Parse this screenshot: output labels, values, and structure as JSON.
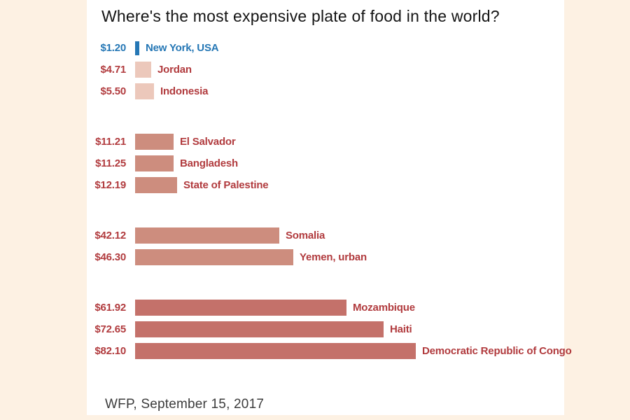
{
  "title": "Where's the most expensive plate of food in the world?",
  "source": "WFP, September 15, 2017",
  "colors": {
    "background": "#fdf1e3",
    "panel": "#ffffff",
    "highlight_blue": "#2577b5",
    "label_red": "#b13b3e",
    "bar_light": "#ecc8bb",
    "bar_medium": "#cd8d7e",
    "bar_dark": "#c4716a",
    "title_text": "#141414",
    "source_text": "#3c3c3c"
  },
  "chart_data": {
    "type": "bar",
    "orientation": "horizontal",
    "title": "Where's the most expensive plate of food in the world?",
    "xlabel": "",
    "ylabel": "",
    "value_prefix": "$",
    "xlim": [
      0,
      82.1
    ],
    "grid": false,
    "legend": false,
    "categories": [
      "New York, USA",
      "Jordan",
      "Indonesia",
      "El Salvador",
      "Bangladesh",
      "State of Palestine",
      "Somalia",
      "Yemen, urban",
      "Mozambique",
      "Haiti",
      "Democratic Republic of Congo"
    ],
    "values": [
      1.2,
      4.71,
      5.5,
      11.21,
      11.25,
      12.19,
      42.12,
      46.3,
      61.92,
      72.65,
      82.1
    ],
    "rows": [
      {
        "value_label": "$1.20",
        "value": 1.2,
        "label": "New York, USA",
        "tier": "highlight",
        "group": 0
      },
      {
        "value_label": "$4.71",
        "value": 4.71,
        "label": "Jordan",
        "tier": "light",
        "group": 0
      },
      {
        "value_label": "$5.50",
        "value": 5.5,
        "label": "Indonesia",
        "tier": "light",
        "group": 0
      },
      {
        "value_label": "$11.21",
        "value": 11.21,
        "label": "El Salvador",
        "tier": "medium",
        "group": 1
      },
      {
        "value_label": "$11.25",
        "value": 11.25,
        "label": "Bangladesh",
        "tier": "medium",
        "group": 1
      },
      {
        "value_label": "$12.19",
        "value": 12.19,
        "label": "State of Palestine",
        "tier": "medium",
        "group": 1
      },
      {
        "value_label": "$42.12",
        "value": 42.12,
        "label": "Somalia",
        "tier": "medium",
        "group": 2
      },
      {
        "value_label": "$46.30",
        "value": 46.3,
        "label": "Yemen, urban",
        "tier": "medium",
        "group": 2
      },
      {
        "value_label": "$61.92",
        "value": 61.92,
        "label": "Mozambique",
        "tier": "dark",
        "group": 3
      },
      {
        "value_label": "$72.65",
        "value": 72.65,
        "label": "Haiti",
        "tier": "dark",
        "group": 3
      },
      {
        "value_label": "$82.10",
        "value": 82.1,
        "label": "Democratic Republic of Congo",
        "tier": "dark",
        "group": 3
      }
    ]
  }
}
